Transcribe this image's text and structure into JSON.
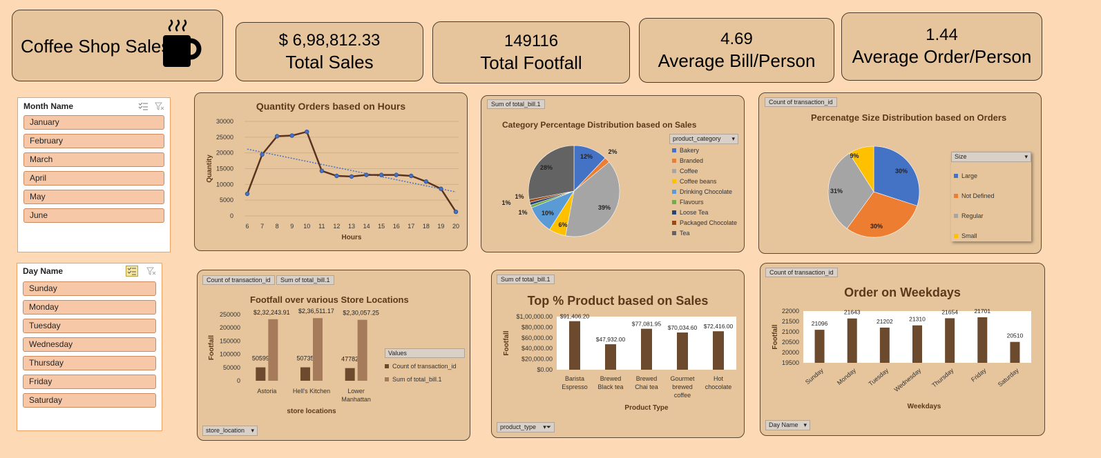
{
  "header": {
    "title": "Coffee Shop Sales",
    "icon": "coffee-cup-icon"
  },
  "kpis": {
    "sales": {
      "value": "$ 6,98,812.33",
      "label": "Total Sales"
    },
    "footfall": {
      "value": "149116",
      "label": "Total Footfall"
    },
    "bill": {
      "value": "4.69",
      "label": "Average Bill/Person"
    },
    "order": {
      "value": "1.44",
      "label": "Average Order/Person"
    }
  },
  "month_slicer": {
    "title": "Month Name",
    "items": [
      "January",
      "February",
      "March",
      "April",
      "May",
      "June"
    ]
  },
  "day_slicer": {
    "title": "Day Name",
    "items": [
      "Sunday",
      "Monday",
      "Tuesday",
      "Wednesday",
      "Thursday",
      "Friday",
      "Saturday"
    ]
  },
  "chips": {
    "sum_total_bill": "Sum of total_bill.1",
    "count_txn": "Count of transaction_id",
    "store_filter": "store_location",
    "product_filter": "product_type",
    "day_filter": "Day Name",
    "product_category": "product_category",
    "size": "Size",
    "values": "Values"
  },
  "colors": {
    "brown_dark": "#6b4a2e",
    "brown_light": "#a67b5b",
    "card_bg": "#e6c49c",
    "page_bg": "#fdd9b5"
  },
  "chart_data": [
    {
      "type": "line",
      "title": "Quantity Orders based on Hours",
      "xlabel": "Hours",
      "ylabel": "Quantity",
      "x": [
        "6",
        "7",
        "8",
        "9",
        "10",
        "11",
        "12",
        "13",
        "14",
        "15",
        "16",
        "17",
        "18",
        "19",
        "20"
      ],
      "values": [
        7000,
        19500,
        25300,
        25500,
        26700,
        14300,
        12700,
        12500,
        13000,
        13000,
        13000,
        12700,
        10900,
        8600,
        1300
      ],
      "ylim": [
        0,
        30000
      ],
      "yticks": [
        "30000",
        "25000",
        "20000",
        "15000",
        "10000",
        "5000",
        "0"
      ],
      "trendline": true,
      "grid": true
    },
    {
      "type": "pie",
      "title": "Category Percentage  Distribution based on Sales",
      "legend_title": "product_category",
      "categories": [
        "Bakery",
        "Branded",
        "Coffee",
        "Coffee beans",
        "Drinking Chocolate",
        "Flavours",
        "Loose Tea",
        "Packaged Chocolate",
        "Tea"
      ],
      "values": [
        12,
        2,
        39,
        6,
        10,
        1,
        1,
        1,
        28
      ],
      "labels": [
        "12%",
        "2%",
        "39%",
        "6%",
        "10%",
        "1%",
        "1%",
        "1%",
        "28%"
      ],
      "colors": [
        "#4472c4",
        "#ed7d31",
        "#a5a5a5",
        "#ffc000",
        "#5b9bd5",
        "#70ad47",
        "#264478",
        "#9e480e",
        "#636363"
      ]
    },
    {
      "type": "pie",
      "title": "Percenatge Size Distribution based on Orders",
      "legend_title": "Size",
      "categories": [
        "Large",
        "Not Defined",
        "Regular",
        "Small"
      ],
      "values": [
        30,
        30,
        31,
        9
      ],
      "labels": [
        "30%",
        "30%",
        "31%",
        "9%"
      ],
      "colors": [
        "#4472c4",
        "#ed7d31",
        "#a5a5a5",
        "#ffc000"
      ]
    },
    {
      "type": "bar",
      "title": "Footfall over various Store Locations",
      "xlabel": "store locations",
      "ylabel": "Footfall",
      "categories": [
        "Astoria",
        "Hell's Kitchen",
        "Lower Manhattan"
      ],
      "series": [
        {
          "name": "Count of transaction_id",
          "values": [
            50599,
            50735,
            47782
          ],
          "labels": [
            "50599",
            "50735",
            "47782"
          ]
        },
        {
          "name": "Sum of total_bill.1",
          "values": [
            232243.91,
            236511.17,
            230057.25
          ],
          "labels": [
            "$2,32,243.91",
            "$2,36,511.17",
            "$2,30,057.25"
          ]
        }
      ],
      "ylim": [
        0,
        250000
      ],
      "yticks": [
        "250000",
        "200000",
        "150000",
        "100000",
        "50000",
        "0"
      ]
    },
    {
      "type": "bar",
      "title": "Top % Product based on Sales",
      "xlabel": "Product Type",
      "ylabel": "Footfall",
      "categories": [
        "Barista Espresso",
        "Brewed Black tea",
        "Brewed Chai tea",
        "Gourmet brewed coffee",
        "Hot chocolate"
      ],
      "values": [
        91406.2,
        47932.0,
        77081.95,
        70034.6,
        72416.0
      ],
      "labels": [
        "$91,406.20",
        "$47,932.00",
        "$77,081.95",
        "$70,034.60",
        "$72,416.00"
      ],
      "ylim": [
        0,
        100000
      ],
      "yticks": [
        "$1,00,000.00",
        "$80,000.00",
        "$60,000.00",
        "$40,000.00",
        "$20,000.00",
        "$0.00"
      ]
    },
    {
      "type": "bar",
      "title": "Order on Weekdays",
      "xlabel": "Weekdays",
      "ylabel": "Footfall",
      "categories": [
        "Sunday",
        "Monday",
        "Tuesday",
        "Wednesday",
        "Thursday",
        "Friday",
        "Saturday"
      ],
      "values": [
        21096,
        21643,
        21202,
        21310,
        21654,
        21701,
        20510
      ],
      "labels": [
        "21096",
        "21643",
        "21202",
        "21310",
        "21654",
        "21701",
        "20510"
      ],
      "ylim": [
        19500,
        22000
      ],
      "yticks": [
        "22000",
        "21500",
        "21000",
        "20500",
        "20000",
        "19500"
      ]
    }
  ]
}
